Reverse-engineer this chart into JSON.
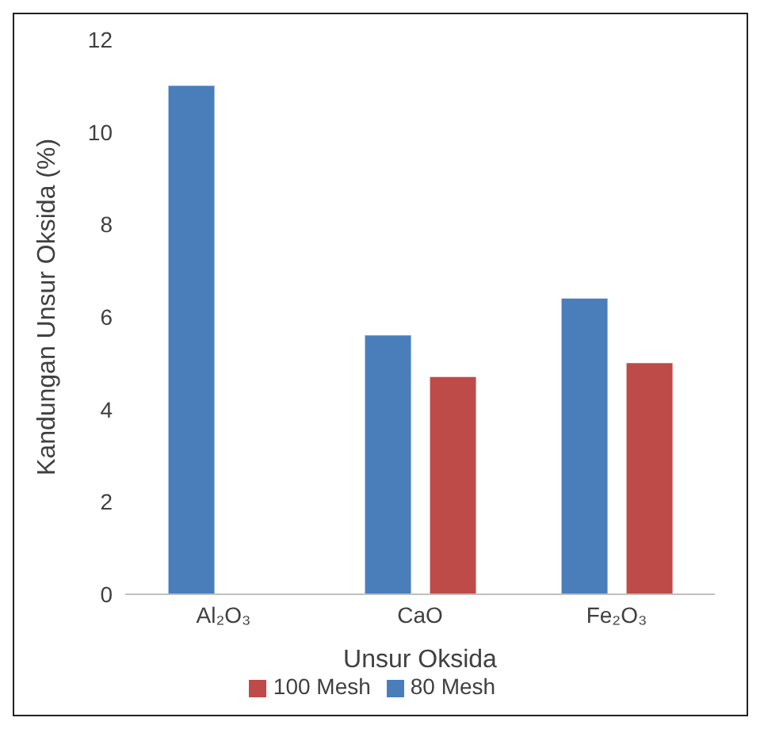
{
  "chart_data": {
    "type": "bar",
    "xlabel": "Unsur Oksida",
    "ylabel": "Kandungan Unsur Oksida (%)",
    "categories": [
      "Al₂O₃",
      "CaO",
      "Fe₂O₃"
    ],
    "series": [
      {
        "name": "80 Mesh",
        "color": "#4a7ebb",
        "values": [
          11.0,
          5.6,
          6.4
        ]
      },
      {
        "name": "100 Mesh",
        "color": "#be4b48",
        "values": [
          null,
          4.7,
          5.0
        ]
      }
    ],
    "ylim": [
      0,
      12
    ],
    "yticks": [
      0,
      2,
      4,
      6,
      8,
      10,
      12
    ],
    "grid": false,
    "legend": "bottom"
  }
}
